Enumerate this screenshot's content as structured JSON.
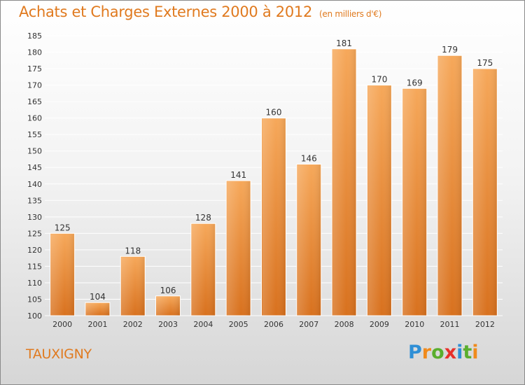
{
  "title": "Achats et Charges Externes 2000 à 2012",
  "subtitle": "(en milliers d'€)",
  "commune": "TAUXIGNY",
  "logo": {
    "text": "Proxiti",
    "letters": [
      {
        "ch": "P",
        "color": "#2f8fd6"
      },
      {
        "ch": "r",
        "color": "#f08a1c"
      },
      {
        "ch": "o",
        "color": "#5aae2e"
      },
      {
        "ch": "x",
        "color": "#e8302a"
      },
      {
        "ch": "i",
        "color": "#2f8fd6"
      },
      {
        "ch": "t",
        "color": "#5aae2e"
      },
      {
        "ch": "i",
        "color": "#f08a1c"
      }
    ]
  },
  "colors": {
    "title": "#e07a1f",
    "bar_top": "#f6a85a",
    "bar_bottom": "#d8711e",
    "grid": "#ffffff",
    "axis_text": "#333333"
  },
  "chart_data": {
    "type": "bar",
    "categories": [
      "2000",
      "2001",
      "2002",
      "2003",
      "2004",
      "2005",
      "2006",
      "2007",
      "2008",
      "2009",
      "2010",
      "2011",
      "2012"
    ],
    "values": [
      125,
      104,
      118,
      106,
      128,
      141,
      160,
      146,
      181,
      170,
      169,
      179,
      175
    ],
    "ylim": [
      100,
      185
    ],
    "yticks": [
      100,
      105,
      110,
      115,
      120,
      125,
      130,
      135,
      140,
      145,
      150,
      155,
      160,
      165,
      170,
      175,
      180,
      185
    ],
    "grid": true,
    "data_labels": true
  }
}
